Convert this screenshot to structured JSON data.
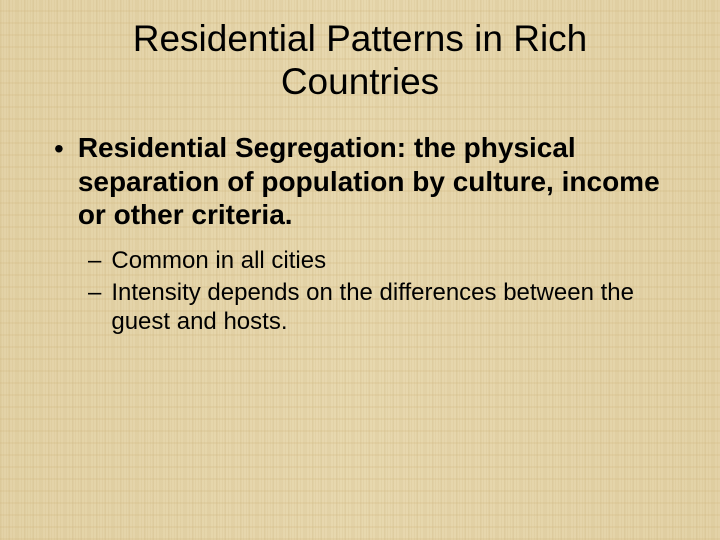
{
  "slide": {
    "title": "Residential Patterns in Rich Countries",
    "background_color": "#e8d9b0",
    "text_color": "#000000",
    "title_fontsize": 37,
    "main_bullet_fontsize": 28,
    "sub_bullet_fontsize": 24,
    "main_bullet": {
      "marker": "•",
      "text": "Residential Segregation: the physical separation of population by culture, income or other criteria."
    },
    "sub_bullets": [
      {
        "marker": "–",
        "text": "Common in all cities"
      },
      {
        "marker": "–",
        "text": "Intensity depends on the differences between the guest and hosts."
      }
    ]
  }
}
